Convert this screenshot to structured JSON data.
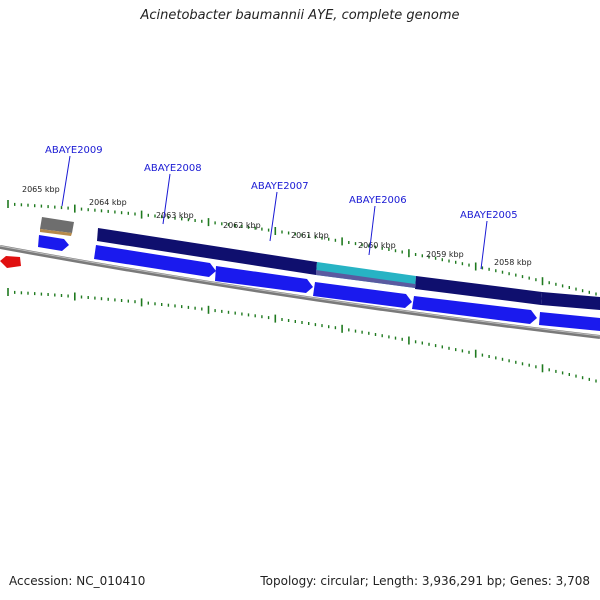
{
  "title": "Acinetobacter baumannii AYE, complete genome",
  "footer": {
    "accession": "Accession: NC_010410",
    "topology": "Topology: circular; Length: 3,936,291 bp; Genes: 3,708"
  },
  "scale": {
    "kbp_labels": [
      "2065 kbp",
      "2064 kbp",
      "2063 kbp",
      "2062 kbp",
      "2061 kbp",
      "2060 kbp",
      "2059 kbp",
      "2058 kbp"
    ]
  },
  "genes": [
    {
      "name": "ABAYE2009"
    },
    {
      "name": "ABAYE2008"
    },
    {
      "name": "ABAYE2007"
    },
    {
      "name": "ABAYE2006"
    },
    {
      "name": "ABAYE2005"
    }
  ],
  "colors": {
    "backbone": "#7a7a7a",
    "cds": "#1a1aee",
    "cds_light": "#5b6bff",
    "gene_navy": "#0f0f6e",
    "gene_teal": "#27b3c4",
    "gene_gray": "#6e6e6e",
    "tick": "#1f7a1f",
    "label": "#1a1ad4",
    "red_arrow": "#e01010"
  }
}
